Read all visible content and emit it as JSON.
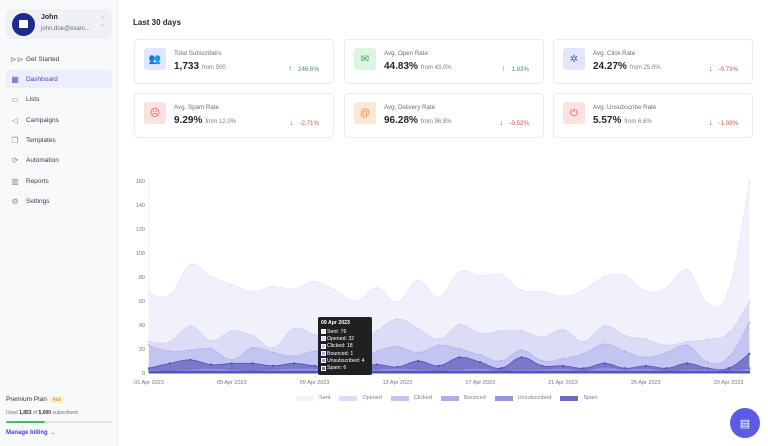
{
  "user": {
    "name": "John",
    "email": "john.doe@exam..."
  },
  "nav": [
    {
      "label": "Get Started",
      "icon": "⊳⊳",
      "name": "get-started-icon"
    },
    {
      "label": "Dashboard",
      "icon": "▦",
      "name": "dashboard-icon",
      "active": true
    },
    {
      "label": "Lists",
      "icon": "▭",
      "name": "folder-icon"
    },
    {
      "label": "Campaigns",
      "icon": "◁",
      "name": "megaphone-icon"
    },
    {
      "label": "Templates",
      "icon": "❐",
      "name": "templates-icon"
    },
    {
      "label": "Automation",
      "icon": "⟳",
      "name": "automation-icon"
    },
    {
      "label": "Reports",
      "icon": "▥",
      "name": "reports-icon"
    },
    {
      "label": "Settings",
      "icon": "⚙",
      "name": "settings-icon"
    }
  ],
  "plan": {
    "name": "Premium Plan",
    "badge": "trial",
    "used_prefix": "Used",
    "used": "1,853",
    "of": "of",
    "total": "5,000",
    "suffix": "subscribers",
    "usage_fraction": 0.37,
    "manage": "Manage billing →"
  },
  "header": {
    "title": "Last 30 days"
  },
  "cards": [
    {
      "label": "Total Subscribers",
      "value": "1,733",
      "from": "from 500",
      "change": "246.6%",
      "dir": "up",
      "icon": "👥",
      "bg": "#dfe8fb",
      "fg": "#4a78d8"
    },
    {
      "label": "Avg. Open Rate",
      "value": "44.83%",
      "from": "from 43.0%",
      "change": "1.83%",
      "dir": "up",
      "icon": "✉",
      "bg": "#dcf5e2",
      "fg": "#3a9c5a"
    },
    {
      "label": "Avg. Click Rate",
      "value": "24.27%",
      "from": "from 25.0%",
      "change": "-0.73%",
      "dir": "down",
      "icon": "✲",
      "bg": "#e3e5fb",
      "fg": "#5a5ad6"
    },
    {
      "label": "Avg. Spam Rate",
      "value": "9.29%",
      "from": "from 12.0%",
      "change": "-2.71%",
      "dir": "down",
      "icon": "☹",
      "bg": "#fbe1e1",
      "fg": "#d9504a"
    },
    {
      "label": "Avg. Delivery Rate",
      "value": "96.28%",
      "from": "from 96.8%",
      "change": "-0.52%",
      "dir": "down",
      "icon": "@",
      "bg": "#fde8d6",
      "fg": "#e08a3c"
    },
    {
      "label": "Avg. Unsubscribe Rate",
      "value": "5.57%",
      "from": "from 6.6%",
      "change": "-1.03%",
      "dir": "down",
      "icon": "⏻",
      "bg": "#fbe1e1",
      "fg": "#d9504a"
    }
  ],
  "chart_data": {
    "type": "area",
    "ylim": [
      0,
      160
    ],
    "yticks": [
      0,
      20,
      40,
      60,
      80,
      100,
      120,
      140,
      160
    ],
    "x": [
      "01 Apr 2023",
      "02 Apr 2023",
      "03 Apr 2023",
      "04 Apr 2023",
      "05 Apr 2023",
      "06 Apr 2023",
      "07 Apr 2023",
      "08 Apr 2023",
      "09 Apr 2023",
      "10 Apr 2023",
      "11 Apr 2023",
      "12 Apr 2023",
      "13 Apr 2023",
      "14 Apr 2023",
      "15 Apr 2023",
      "16 Apr 2023",
      "17 Apr 2023",
      "18 Apr 2023",
      "19 Apr 2023",
      "20 Apr 2023",
      "21 Apr 2023",
      "22 Apr 2023",
      "23 Apr 2023",
      "24 Apr 2023",
      "25 Apr 2023",
      "26 Apr 2023",
      "27 Apr 2023",
      "28 Apr 2023",
      "29 Apr 2023",
      "30 Apr 2023"
    ],
    "xtick_labels": [
      "01 Apr 2023",
      "05 Apr 2023",
      "09 Apr 2023",
      "13 Apr 2023",
      "17 Apr 2023",
      "21 Apr 2023",
      "25 Apr 2023",
      "29 Apr 2023"
    ],
    "series": [
      {
        "name": "Sent",
        "color": "#f1f1fc",
        "values": [
          66,
          65,
          90,
          80,
          74,
          68,
          72,
          70,
          76,
          69,
          60,
          71,
          59,
          77,
          63,
          84,
          81,
          82,
          69,
          68,
          64,
          69,
          80,
          81,
          68,
          71,
          86,
          58,
          69,
          159
        ]
      },
      {
        "name": "Opened",
        "color": "#dcdcf7",
        "values": [
          26,
          26,
          39,
          27,
          35,
          31,
          21,
          37,
          32,
          29,
          25,
          35,
          45,
          37,
          28,
          40,
          33,
          35,
          35,
          30,
          36,
          26,
          39,
          31,
          28,
          23,
          26,
          28,
          33,
          59
        ]
      },
      {
        "name": "Clicked",
        "color": "#c4c4f2",
        "values": [
          23,
          18,
          19,
          20,
          11,
          21,
          17,
          14,
          18,
          14,
          10,
          18,
          22,
          17,
          23,
          20,
          15,
          10,
          19,
          10,
          12,
          16,
          24,
          18,
          13,
          17,
          23,
          9,
          13,
          42
        ]
      },
      {
        "name": "Bounced",
        "color": "#aeaeee",
        "values": [
          1,
          1,
          2,
          1,
          1,
          1,
          2,
          1,
          1,
          1,
          2,
          1,
          1,
          1,
          1,
          1,
          1,
          1,
          1,
          2,
          1,
          1,
          1,
          1,
          1,
          1,
          1,
          1,
          1,
          2
        ]
      },
      {
        "name": "Unsubscribed",
        "color": "#9595d9",
        "values": [
          3,
          2,
          3,
          4,
          3,
          2,
          3,
          4,
          4,
          3,
          2,
          3,
          4,
          3,
          2,
          3,
          4,
          2,
          3,
          3,
          4,
          2,
          5,
          3,
          4,
          2,
          3,
          3,
          2,
          4
        ]
      },
      {
        "name": "Spam",
        "color": "#6c6cc0",
        "values": [
          4,
          8,
          11,
          7,
          8,
          8,
          6,
          8,
          6,
          5,
          4,
          7,
          5,
          10,
          6,
          13,
          9,
          4,
          13,
          6,
          6,
          4,
          8,
          4,
          6,
          4,
          8,
          4,
          4,
          16
        ]
      }
    ],
    "legend_position": "bottom",
    "tooltip": {
      "title": "09 Apr 2023",
      "rows": [
        "Sent: 76",
        "Opened: 32",
        "Clicked: 18",
        "Bounced: 1",
        "Unsubscribed: 4",
        "Spam: 6"
      ]
    }
  }
}
